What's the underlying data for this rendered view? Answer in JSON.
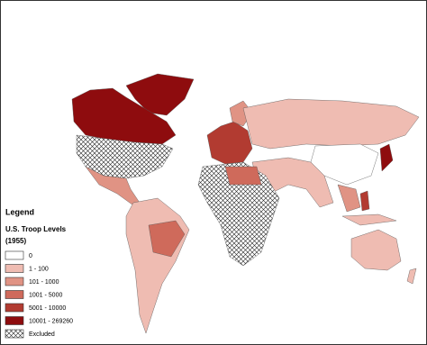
{
  "legend": {
    "title": "Legend",
    "subtitle": "U.S. Troop Levels",
    "year": "(1955)",
    "items": [
      {
        "label": "0",
        "color": "#ffffff"
      },
      {
        "label": "1 - 100",
        "color": "#efbcb2"
      },
      {
        "label": "101 - 1000",
        "color": "#e09384"
      },
      {
        "label": "1001 - 5000",
        "color": "#cf6a5b"
      },
      {
        "label": "5001 - 10000",
        "color": "#b23b31"
      },
      {
        "label": "10001 - 269260",
        "color": "#8e0c0e"
      },
      {
        "label": "Excluded",
        "color": "hatch"
      }
    ]
  }
}
